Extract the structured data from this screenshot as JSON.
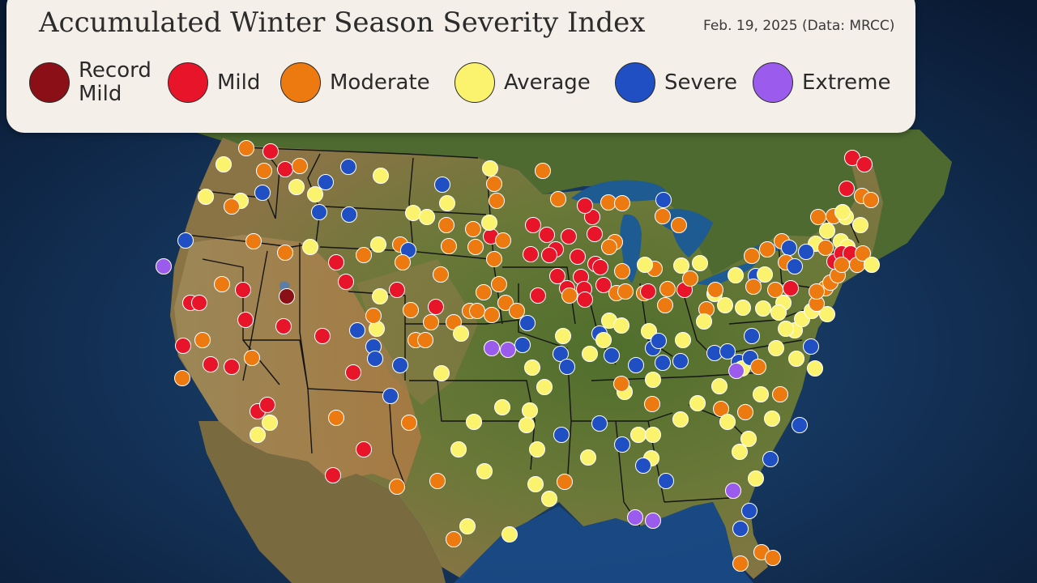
{
  "header": {
    "title": "Accumulated Winter Season Severity Index",
    "subtitle": "Feb. 19, 2025 (Data: MRCC)"
  },
  "legend": {
    "items": [
      {
        "key": "record_mild",
        "label": "Record Mild",
        "color": "#8b0f16"
      },
      {
        "key": "mild",
        "label": "Mild",
        "color": "#e8152a"
      },
      {
        "key": "moderate",
        "label": "Moderate",
        "color": "#ec7a10"
      },
      {
        "key": "average",
        "label": "Average",
        "color": "#fbf36e"
      },
      {
        "key": "severe",
        "label": "Severe",
        "color": "#1f4fc2"
      },
      {
        "key": "extreme",
        "label": "Extreme",
        "color": "#9b5ced"
      }
    ]
  },
  "map_colors": {
    "ocean": "#15345c",
    "land": "#55702f",
    "arid_land": "#a38652",
    "boundaries": "#161616",
    "lakes": "#1d5b92"
  }
}
